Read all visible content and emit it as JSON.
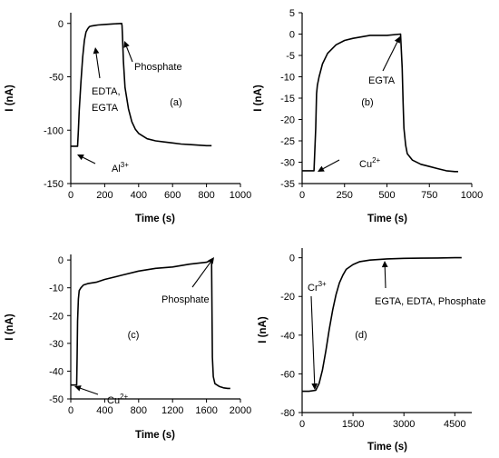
{
  "chart_data": [
    {
      "panel": "(a)",
      "type": "line",
      "xlabel": "Time (s)",
      "ylabel": "I (nA)",
      "xlim": [
        0,
        1000
      ],
      "ylim": [
        -150,
        10
      ],
      "xticks": [
        0,
        200,
        400,
        600,
        800,
        1000
      ],
      "yticks": [
        0,
        -50,
        -100,
        -150
      ],
      "series": [
        {
          "x": [
            0,
            20,
            40,
            45,
            50,
            60,
            70,
            80,
            90,
            100,
            110,
            120,
            140,
            160,
            200,
            250,
            300,
            302,
            305,
            310,
            320,
            340,
            360,
            380,
            400,
            450,
            500,
            550,
            600,
            650,
            700,
            750,
            800,
            830
          ],
          "y": [
            -115,
            -115,
            -115,
            -100,
            -82,
            -55,
            -32,
            -16,
            -8,
            -5,
            -3,
            -2.5,
            -2,
            -1.5,
            -1,
            -0.5,
            0,
            -2,
            -12,
            -35,
            -60,
            -80,
            -92,
            -99,
            -103,
            -108,
            -110,
            -111,
            -112,
            -113,
            -113.5,
            -114,
            -114.5,
            -114.5
          ]
        }
      ],
      "annotations": [
        {
          "text": "Phosphate",
          "x": 300,
          "y": 0
        },
        {
          "text": "EDTA,",
          "x": 150,
          "y": -5
        },
        {
          "text": "EGTA",
          "x": 150,
          "y": -5
        },
        {
          "text": "Al",
          "sup": "3+",
          "x": 40,
          "y": -115
        }
      ]
    },
    {
      "panel": "(b)",
      "type": "line",
      "xlabel": "Time (s)",
      "ylabel": "I (nA)",
      "xlim": [
        0,
        1000
      ],
      "ylim": [
        -35,
        5
      ],
      "xticks": [
        0,
        250,
        500,
        750,
        1000
      ],
      "yticks": [
        5,
        0,
        -5,
        -10,
        -15,
        -20,
        -25,
        -30,
        -35
      ],
      "series": [
        {
          "x": [
            0,
            40,
            70,
            80,
            85,
            90,
            100,
            120,
            150,
            200,
            250,
            300,
            400,
            500,
            580,
            590,
            595,
            600,
            610,
            620,
            650,
            700,
            750,
            800,
            850,
            900,
            920
          ],
          "y": [
            -32,
            -32,
            -32,
            -22,
            -14,
            -12,
            -10,
            -7,
            -4.5,
            -2.5,
            -1.5,
            -1,
            -0.3,
            -0.3,
            0,
            -8,
            -16,
            -22,
            -26,
            -28,
            -29.5,
            -30.5,
            -31,
            -31.5,
            -32,
            -32.2,
            -32.2
          ]
        }
      ],
      "annotations": [
        {
          "text": "EGTA",
          "x": 590,
          "y": 0
        },
        {
          "text": "Cu",
          "sup": "2+",
          "x": 80,
          "y": -32
        }
      ]
    },
    {
      "panel": "(c)",
      "type": "line",
      "xlabel": "Time (s)",
      "ylabel": "I (nA)",
      "xlim": [
        0,
        2000
      ],
      "ylim": [
        -50,
        2
      ],
      "xticks": [
        0,
        400,
        800,
        1200,
        1600,
        2000
      ],
      "yticks": [
        0,
        -10,
        -20,
        -30,
        -40,
        -50
      ],
      "series": [
        {
          "x": [
            0,
            70,
            75,
            80,
            90,
            100,
            120,
            150,
            200,
            300,
            400,
            600,
            800,
            1000,
            1200,
            1400,
            1600,
            1660,
            1665,
            1670,
            1680,
            1700,
            1750,
            1800,
            1850,
            1880
          ],
          "y": [
            -45,
            -45,
            -35,
            -22,
            -14,
            -11,
            -10,
            -9,
            -8.5,
            -8,
            -7,
            -5.5,
            -4,
            -3,
            -2.5,
            -1.5,
            -0.8,
            0,
            -20,
            -35,
            -42,
            -44.5,
            -45.5,
            -46,
            -46.2,
            -46.2
          ]
        }
      ],
      "annotations": [
        {
          "text": "Phosphate",
          "x": 1660,
          "y": 0
        },
        {
          "text": "Cu",
          "sup": "2+",
          "x": 75,
          "y": -45
        }
      ]
    },
    {
      "panel": "(d)",
      "type": "line",
      "xlabel": "Time (s)",
      "ylabel": "I (nA)",
      "xlim": [
        0,
        5000
      ],
      "ylim": [
        -80,
        5
      ],
      "xticks": [
        0,
        1500,
        3000,
        4500
      ],
      "yticks": [
        0,
        -20,
        -40,
        -60,
        -80
      ],
      "series": [
        {
          "x": [
            0,
            200,
            400,
            500,
            600,
            700,
            800,
            900,
            1000,
            1100,
            1200,
            1300,
            1500,
            1700,
            2000,
            2500,
            3000,
            3500,
            4000,
            4500,
            4700
          ],
          "y": [
            -69,
            -69,
            -68.5,
            -65,
            -58,
            -48,
            -37,
            -27,
            -19,
            -13,
            -9,
            -6,
            -3.5,
            -2,
            -1.2,
            -0.6,
            -0.3,
            -0.2,
            -0.1,
            0,
            0
          ]
        }
      ],
      "annotations": [
        {
          "text": "EGTA, EDTA, Phosphate",
          "x": 2700,
          "y": 0
        },
        {
          "text": "Cr",
          "sup": "3+",
          "x": 350,
          "y": -69
        }
      ]
    }
  ]
}
